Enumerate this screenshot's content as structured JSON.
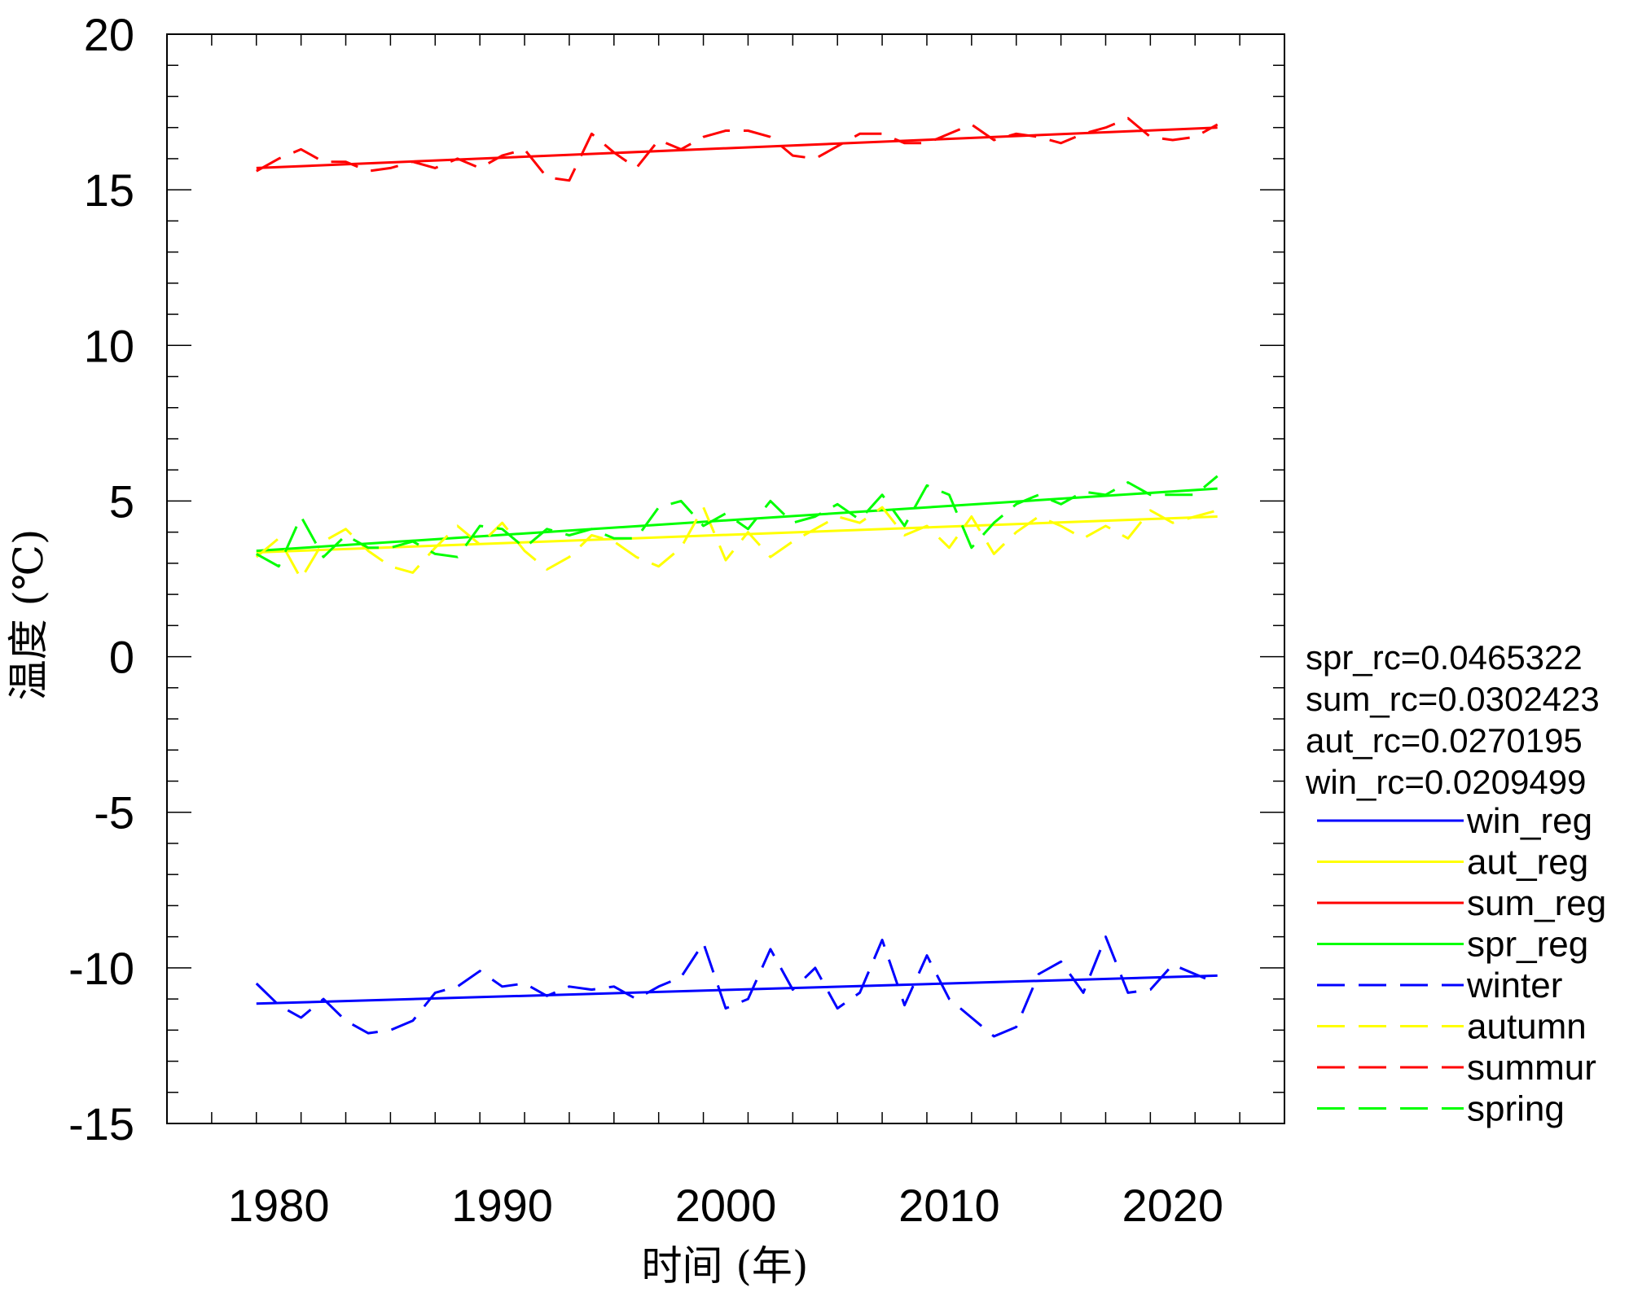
{
  "chart_data": {
    "type": "line",
    "xlabel": "时间 (年)",
    "ylabel": "温度 (℃)",
    "xlim": [
      1975,
      2025
    ],
    "ylim": [
      -15,
      20
    ],
    "xticks": [
      1980,
      1990,
      2000,
      2010,
      2020
    ],
    "yticks": [
      -15,
      -10,
      -5,
      0,
      5,
      10,
      15,
      20
    ],
    "x_tick_labels": [
      "1980",
      "1990",
      "2000",
      "2010",
      "2020"
    ],
    "y_tick_labels": [
      "-15",
      "-10",
      "-5",
      "0",
      "5",
      "10",
      "15",
      "20"
    ],
    "grid": false,
    "legend_position": "right",
    "annotations": [
      "spr_rc=0.0465322",
      "sum_rc=0.0302423",
      "aut_rc=0.0270195",
      "win_rc=0.0209499"
    ],
    "x": [
      1979,
      1980,
      1981,
      1982,
      1983,
      1984,
      1985,
      1986,
      1987,
      1988,
      1989,
      1990,
      1991,
      1992,
      1993,
      1994,
      1995,
      1996,
      1997,
      1998,
      1999,
      2000,
      2001,
      2002,
      2003,
      2004,
      2005,
      2006,
      2007,
      2008,
      2009,
      2010,
      2011,
      2012,
      2013,
      2014,
      2015,
      2016,
      2017,
      2018,
      2019,
      2020,
      2021,
      2022
    ],
    "series": [
      {
        "name": "win_reg",
        "style": "solid",
        "color": "#0000ff",
        "x": [
          1979,
          2022
        ],
        "values": [
          -11.15,
          -10.25
        ]
      },
      {
        "name": "aut_reg",
        "style": "solid",
        "color": "#ffff00",
        "x": [
          1979,
          2022
        ],
        "values": [
          3.35,
          4.5
        ]
      },
      {
        "name": "sum_reg",
        "style": "solid",
        "color": "#ff0000",
        "x": [
          1979,
          2022
        ],
        "values": [
          15.7,
          17.0
        ]
      },
      {
        "name": "spr_reg",
        "style": "solid",
        "color": "#00ff00",
        "x": [
          1979,
          2022
        ],
        "values": [
          3.4,
          5.4
        ]
      },
      {
        "name": "winter",
        "style": "dashed",
        "color": "#0000ff",
        "values": [
          -10.5,
          -11.2,
          -11.6,
          -11.0,
          -11.7,
          -12.1,
          -12.0,
          -11.7,
          -10.8,
          -10.6,
          -10.1,
          -10.6,
          -10.5,
          -10.9,
          -10.6,
          -10.7,
          -10.6,
          -11.0,
          -10.6,
          -10.3,
          -9.2,
          -11.3,
          -11.0,
          -9.4,
          -10.7,
          -10.0,
          -11.3,
          -10.8,
          -9.1,
          -11.2,
          -9.6,
          -11.0,
          -11.6,
          -12.2,
          -11.9,
          -10.2,
          -9.8,
          -10.8,
          -9.0,
          -10.8,
          -10.7,
          -9.9,
          -10.2,
          -10.5
        ]
      },
      {
        "name": "autumn",
        "style": "dashed",
        "color": "#ffff00",
        "values": [
          3.2,
          3.8,
          2.5,
          3.7,
          4.1,
          3.4,
          2.9,
          2.7,
          3.5,
          4.2,
          3.6,
          4.3,
          3.4,
          2.8,
          3.2,
          3.9,
          3.7,
          3.2,
          2.9,
          3.5,
          4.8,
          3.1,
          4.0,
          3.2,
          3.7,
          4.1,
          4.5,
          4.3,
          4.8,
          3.9,
          4.2,
          3.5,
          4.5,
          3.3,
          4.0,
          4.5,
          4.2,
          3.8,
          4.2,
          3.8,
          4.7,
          4.3,
          4.5,
          4.7
        ]
      },
      {
        "name": "summur",
        "style": "dashed",
        "color": "#ff0000",
        "values": [
          15.6,
          16.0,
          16.3,
          15.9,
          15.9,
          15.6,
          15.7,
          15.9,
          15.7,
          16.0,
          15.7,
          16.1,
          16.3,
          15.4,
          15.3,
          16.8,
          16.2,
          15.7,
          16.6,
          16.3,
          16.7,
          16.9,
          16.9,
          16.7,
          16.1,
          16.0,
          16.4,
          16.8,
          16.8,
          16.5,
          16.5,
          16.8,
          17.1,
          16.6,
          16.8,
          16.7,
          16.5,
          16.8,
          17.0,
          17.3,
          16.7,
          16.6,
          16.7,
          17.1
        ]
      },
      {
        "name": "spring",
        "style": "dashed",
        "color": "#00ff00",
        "values": [
          3.3,
          2.9,
          4.5,
          3.2,
          3.9,
          3.5,
          3.5,
          3.7,
          3.3,
          3.2,
          4.2,
          4.1,
          3.5,
          4.1,
          3.9,
          4.1,
          3.8,
          3.8,
          4.8,
          5.0,
          4.2,
          4.6,
          4.1,
          5.0,
          4.3,
          4.5,
          4.9,
          4.4,
          5.2,
          4.2,
          5.5,
          5.2,
          3.5,
          4.3,
          4.9,
          5.2,
          4.9,
          5.3,
          5.2,
          5.6,
          5.2,
          5.2,
          5.2,
          5.8
        ]
      }
    ]
  }
}
